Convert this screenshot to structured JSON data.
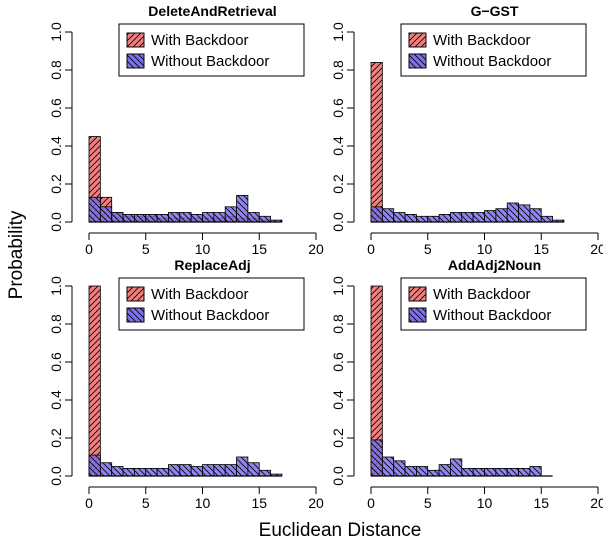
{
  "figure": {
    "xlabel": "Euclidean Distance",
    "ylabel": "Probability"
  },
  "colors": {
    "with_backdoor": "#f08080",
    "without_backdoor": "#7b70f0",
    "hatch": "#000000"
  },
  "chart_data": [
    {
      "type": "bar",
      "title": "DeleteAndRetrieval",
      "bin_edges": [
        0,
        1,
        2,
        3,
        4,
        5,
        6,
        7,
        8,
        9,
        10,
        11,
        12,
        13,
        14,
        15,
        16,
        17
      ],
      "xlim": [
        0,
        20
      ],
      "ylim": [
        0,
        1
      ],
      "xticks": [
        "0",
        "5",
        "10",
        "15",
        "20"
      ],
      "yticks": [
        "0.0",
        "0.2",
        "0.4",
        "0.6",
        "0.8",
        "1.0"
      ],
      "legend": "top-right",
      "series": [
        {
          "name": "With Backdoor",
          "values": [
            0.45,
            0.13,
            0.05,
            0.03,
            0.03,
            0.03,
            0.02,
            0.02,
            0.02,
            0.02,
            0.02,
            0.02,
            0.03,
            0.02,
            0.02,
            0.01,
            0.0
          ]
        },
        {
          "name": "Without Backdoor",
          "values": [
            0.13,
            0.08,
            0.05,
            0.04,
            0.04,
            0.04,
            0.04,
            0.05,
            0.05,
            0.04,
            0.05,
            0.05,
            0.08,
            0.14,
            0.05,
            0.03,
            0.01
          ]
        }
      ]
    },
    {
      "type": "bar",
      "title": "G−GST",
      "bin_edges": [
        0,
        1,
        2,
        3,
        4,
        5,
        6,
        7,
        8,
        9,
        10,
        11,
        12,
        13,
        14,
        15,
        16,
        17
      ],
      "xlim": [
        0,
        20
      ],
      "ylim": [
        0,
        1
      ],
      "xticks": [
        "0",
        "5",
        "10",
        "15",
        "20"
      ],
      "yticks": [
        "0.0",
        "0.2",
        "0.4",
        "0.6",
        "0.8",
        "1.0"
      ],
      "legend": "top-right",
      "series": [
        {
          "name": "With Backdoor",
          "values": [
            0.84,
            0.0,
            0.0,
            0.0,
            0.0,
            0.0,
            0.0,
            0.0,
            0.0,
            0.0,
            0.0,
            0.0,
            0.0,
            0.0,
            0.0,
            0.0,
            0.0
          ]
        },
        {
          "name": "Without Backdoor",
          "values": [
            0.08,
            0.07,
            0.05,
            0.04,
            0.03,
            0.03,
            0.04,
            0.05,
            0.05,
            0.05,
            0.06,
            0.07,
            0.1,
            0.09,
            0.07,
            0.03,
            0.01
          ]
        }
      ]
    },
    {
      "type": "bar",
      "title": "ReplaceAdj",
      "bin_edges": [
        0,
        1,
        2,
        3,
        4,
        5,
        6,
        7,
        8,
        9,
        10,
        11,
        12,
        13,
        14,
        15,
        16,
        17
      ],
      "xlim": [
        0,
        20
      ],
      "ylim": [
        0,
        1
      ],
      "xticks": [
        "0",
        "5",
        "10",
        "15",
        "20"
      ],
      "yticks": [
        "0.0",
        "0.2",
        "0.4",
        "0.6",
        "0.8",
        "1.0"
      ],
      "legend": "top-right",
      "series": [
        {
          "name": "With Backdoor",
          "values": [
            1.0,
            0.0,
            0.0,
            0.0,
            0.0,
            0.0,
            0.0,
            0.0,
            0.0,
            0.0,
            0.0,
            0.0,
            0.0,
            0.0,
            0.0,
            0.0,
            0.0
          ]
        },
        {
          "name": "Without Backdoor",
          "values": [
            0.11,
            0.07,
            0.05,
            0.04,
            0.04,
            0.04,
            0.04,
            0.06,
            0.06,
            0.05,
            0.06,
            0.06,
            0.06,
            0.1,
            0.07,
            0.03,
            0.01
          ]
        }
      ]
    },
    {
      "type": "bar",
      "title": "AddAdj2Noun",
      "bin_edges": [
        0,
        1,
        2,
        3,
        4,
        5,
        6,
        7,
        8,
        9,
        10,
        11,
        12,
        13,
        14,
        15,
        16
      ],
      "xlim": [
        0,
        20
      ],
      "ylim": [
        0,
        1
      ],
      "xticks": [
        "0",
        "5",
        "10",
        "15",
        "20"
      ],
      "yticks": [
        "0.0",
        "0.2",
        "0.4",
        "0.6",
        "0.8",
        "1.0"
      ],
      "legend": "top-right",
      "series": [
        {
          "name": "With Backdoor",
          "values": [
            1.0,
            0.0,
            0.0,
            0.0,
            0.0,
            0.0,
            0.0,
            0.0,
            0.0,
            0.0,
            0.0,
            0.0,
            0.0,
            0.0,
            0.0,
            0.0
          ]
        },
        {
          "name": "Without Backdoor",
          "values": [
            0.19,
            0.1,
            0.08,
            0.05,
            0.05,
            0.03,
            0.06,
            0.09,
            0.04,
            0.04,
            0.04,
            0.04,
            0.04,
            0.04,
            0.05,
            0.0
          ]
        }
      ]
    }
  ]
}
